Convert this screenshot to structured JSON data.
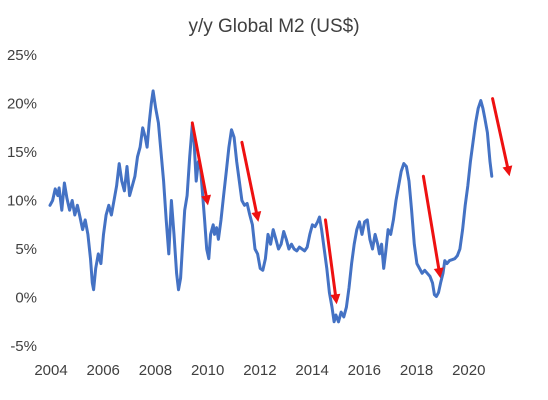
{
  "chart_data": {
    "type": "line",
    "title": "y/y Global M2 (US$)",
    "xlabel": "",
    "ylabel": "",
    "xlim": [
      2004,
      2022
    ],
    "ylim": [
      -5,
      25
    ],
    "y_ticks": [
      {
        "value": 25,
        "label": "25%"
      },
      {
        "value": 20,
        "label": "20%"
      },
      {
        "value": 15,
        "label": "15%"
      },
      {
        "value": 10,
        "label": "10%"
      },
      {
        "value": 5,
        "label": "5%"
      },
      {
        "value": 0,
        "label": "0%"
      },
      {
        "value": -5,
        "label": "-5%"
      }
    ],
    "x_ticks": [
      {
        "value": 2004,
        "label": "2004"
      },
      {
        "value": 2006,
        "label": "2006"
      },
      {
        "value": 2008,
        "label": "2008"
      },
      {
        "value": 2010,
        "label": "2010"
      },
      {
        "value": 2012,
        "label": "2012"
      },
      {
        "value": 2014,
        "label": "2014"
      },
      {
        "value": 2016,
        "label": "2016"
      },
      {
        "value": 2018,
        "label": "2018"
      },
      {
        "value": 2020,
        "label": "2020"
      }
    ],
    "grid": false,
    "legend": "none",
    "series": [
      {
        "color": "#4472c4",
        "points": [
          [
            2004.0,
            9.5
          ],
          [
            2004.1,
            10.0
          ],
          [
            2004.2,
            11.2
          ],
          [
            2004.3,
            10.5
          ],
          [
            2004.35,
            11.3
          ],
          [
            2004.45,
            9.0
          ],
          [
            2004.55,
            11.8
          ],
          [
            2004.65,
            10.2
          ],
          [
            2004.75,
            9.0
          ],
          [
            2004.85,
            10.0
          ],
          [
            2004.95,
            8.5
          ],
          [
            2005.05,
            9.5
          ],
          [
            2005.15,
            8.3
          ],
          [
            2005.25,
            7.0
          ],
          [
            2005.35,
            8.0
          ],
          [
            2005.45,
            6.5
          ],
          [
            2005.55,
            4.0
          ],
          [
            2005.62,
            1.5
          ],
          [
            2005.67,
            0.8
          ],
          [
            2005.75,
            3.0
          ],
          [
            2005.85,
            4.5
          ],
          [
            2005.95,
            3.5
          ],
          [
            2006.05,
            6.5
          ],
          [
            2006.15,
            8.5
          ],
          [
            2006.25,
            9.5
          ],
          [
            2006.35,
            8.5
          ],
          [
            2006.45,
            10.0
          ],
          [
            2006.55,
            11.5
          ],
          [
            2006.65,
            13.8
          ],
          [
            2006.75,
            12.0
          ],
          [
            2006.85,
            11.0
          ],
          [
            2006.95,
            13.5
          ],
          [
            2007.05,
            10.5
          ],
          [
            2007.15,
            11.5
          ],
          [
            2007.25,
            12.5
          ],
          [
            2007.35,
            14.5
          ],
          [
            2007.45,
            15.5
          ],
          [
            2007.55,
            17.5
          ],
          [
            2007.65,
            16.5
          ],
          [
            2007.72,
            15.5
          ],
          [
            2007.8,
            18.0
          ],
          [
            2007.88,
            20.0
          ],
          [
            2007.95,
            21.3
          ],
          [
            2008.05,
            19.5
          ],
          [
            2008.15,
            18.0
          ],
          [
            2008.25,
            15.0
          ],
          [
            2008.35,
            12.0
          ],
          [
            2008.45,
            8.0
          ],
          [
            2008.55,
            4.5
          ],
          [
            2008.65,
            10.0
          ],
          [
            2008.75,
            6.5
          ],
          [
            2008.85,
            2.5
          ],
          [
            2008.92,
            0.8
          ],
          [
            2009.0,
            2.0
          ],
          [
            2009.08,
            5.5
          ],
          [
            2009.16,
            9.0
          ],
          [
            2009.25,
            10.5
          ],
          [
            2009.35,
            14.5
          ],
          [
            2009.45,
            17.8
          ],
          [
            2009.52,
            16.0
          ],
          [
            2009.6,
            12.0
          ],
          [
            2009.68,
            14.0
          ],
          [
            2009.76,
            13.5
          ],
          [
            2009.85,
            10.5
          ],
          [
            2009.92,
            8.0
          ],
          [
            2010.0,
            5.0
          ],
          [
            2010.08,
            4.0
          ],
          [
            2010.15,
            6.5
          ],
          [
            2010.25,
            7.5
          ],
          [
            2010.3,
            6.5
          ],
          [
            2010.38,
            7.2
          ],
          [
            2010.45,
            6.0
          ],
          [
            2010.55,
            8.0
          ],
          [
            2010.65,
            10.5
          ],
          [
            2010.75,
            13.0
          ],
          [
            2010.85,
            15.5
          ],
          [
            2010.95,
            17.3
          ],
          [
            2011.05,
            16.5
          ],
          [
            2011.15,
            14.0
          ],
          [
            2011.25,
            12.0
          ],
          [
            2011.35,
            10.0
          ],
          [
            2011.45,
            9.5
          ],
          [
            2011.55,
            9.7
          ],
          [
            2011.65,
            8.5
          ],
          [
            2011.75,
            7.5
          ],
          [
            2011.85,
            5.0
          ],
          [
            2011.95,
            4.5
          ],
          [
            2012.05,
            3.0
          ],
          [
            2012.15,
            2.8
          ],
          [
            2012.25,
            4.0
          ],
          [
            2012.35,
            6.5
          ],
          [
            2012.45,
            5.5
          ],
          [
            2012.55,
            7.0
          ],
          [
            2012.65,
            6.0
          ],
          [
            2012.75,
            5.0
          ],
          [
            2012.85,
            5.5
          ],
          [
            2012.95,
            6.8
          ],
          [
            2013.05,
            6.0
          ],
          [
            2013.15,
            5.0
          ],
          [
            2013.25,
            5.5
          ],
          [
            2013.35,
            5.0
          ],
          [
            2013.45,
            4.8
          ],
          [
            2013.55,
            5.2
          ],
          [
            2013.65,
            5.0
          ],
          [
            2013.75,
            4.8
          ],
          [
            2013.85,
            5.2
          ],
          [
            2013.95,
            6.5
          ],
          [
            2014.05,
            7.5
          ],
          [
            2014.15,
            7.3
          ],
          [
            2014.25,
            7.8
          ],
          [
            2014.32,
            8.3
          ],
          [
            2014.4,
            7.0
          ],
          [
            2014.5,
            5.0
          ],
          [
            2014.6,
            3.0
          ],
          [
            2014.7,
            0.5
          ],
          [
            2014.8,
            -1.0
          ],
          [
            2014.88,
            -2.5
          ],
          [
            2014.95,
            -1.8
          ],
          [
            2015.05,
            -2.5
          ],
          [
            2015.15,
            -1.5
          ],
          [
            2015.25,
            -2.0
          ],
          [
            2015.35,
            -1.0
          ],
          [
            2015.45,
            1.0
          ],
          [
            2015.55,
            3.5
          ],
          [
            2015.65,
            5.5
          ],
          [
            2015.75,
            7.0
          ],
          [
            2015.85,
            7.8
          ],
          [
            2015.95,
            6.5
          ],
          [
            2016.05,
            7.8
          ],
          [
            2016.15,
            8.0
          ],
          [
            2016.25,
            6.0
          ],
          [
            2016.35,
            5.0
          ],
          [
            2016.45,
            6.5
          ],
          [
            2016.55,
            5.5
          ],
          [
            2016.62,
            4.5
          ],
          [
            2016.7,
            5.5
          ],
          [
            2016.78,
            3.0
          ],
          [
            2016.85,
            4.5
          ],
          [
            2016.95,
            7.0
          ],
          [
            2017.05,
            6.5
          ],
          [
            2017.15,
            8.0
          ],
          [
            2017.25,
            10.0
          ],
          [
            2017.35,
            11.5
          ],
          [
            2017.45,
            13.0
          ],
          [
            2017.55,
            13.8
          ],
          [
            2017.65,
            13.5
          ],
          [
            2017.75,
            12.0
          ],
          [
            2017.85,
            9.0
          ],
          [
            2017.95,
            5.5
          ],
          [
            2018.05,
            3.5
          ],
          [
            2018.15,
            3.0
          ],
          [
            2018.25,
            2.5
          ],
          [
            2018.35,
            2.8
          ],
          [
            2018.45,
            2.5
          ],
          [
            2018.55,
            2.2
          ],
          [
            2018.65,
            1.5
          ],
          [
            2018.72,
            0.3
          ],
          [
            2018.8,
            0.1
          ],
          [
            2018.88,
            0.5
          ],
          [
            2018.96,
            1.5
          ],
          [
            2019.05,
            2.5
          ],
          [
            2019.12,
            3.8
          ],
          [
            2019.2,
            3.5
          ],
          [
            2019.3,
            3.8
          ],
          [
            2019.4,
            3.9
          ],
          [
            2019.5,
            4.0
          ],
          [
            2019.6,
            4.3
          ],
          [
            2019.7,
            5.0
          ],
          [
            2019.8,
            7.0
          ],
          [
            2019.9,
            9.5
          ],
          [
            2020.0,
            11.5
          ],
          [
            2020.1,
            14.0
          ],
          [
            2020.2,
            16.0
          ],
          [
            2020.3,
            18.0
          ],
          [
            2020.4,
            19.5
          ],
          [
            2020.5,
            20.3
          ],
          [
            2020.58,
            19.5
          ],
          [
            2020.65,
            18.5
          ],
          [
            2020.75,
            17.0
          ],
          [
            2020.85,
            14.0
          ],
          [
            2020.92,
            12.5
          ]
        ]
      }
    ],
    "annotations": [
      {
        "type": "arrow",
        "color": "#ee1111",
        "from": [
          2009.45,
          18.0
        ],
        "to": [
          2010.05,
          9.5
        ]
      },
      {
        "type": "arrow",
        "color": "#ee1111",
        "from": [
          2011.35,
          16.0
        ],
        "to": [
          2011.98,
          7.8
        ]
      },
      {
        "type": "arrow",
        "color": "#ee1111",
        "from": [
          2014.55,
          8.0
        ],
        "to": [
          2014.98,
          -0.7
        ]
      },
      {
        "type": "arrow",
        "color": "#ee1111",
        "from": [
          2018.3,
          12.5
        ],
        "to": [
          2018.95,
          2.0
        ]
      },
      {
        "type": "arrow",
        "color": "#ee1111",
        "from": [
          2020.95,
          20.5
        ],
        "to": [
          2021.6,
          12.5
        ]
      }
    ]
  }
}
